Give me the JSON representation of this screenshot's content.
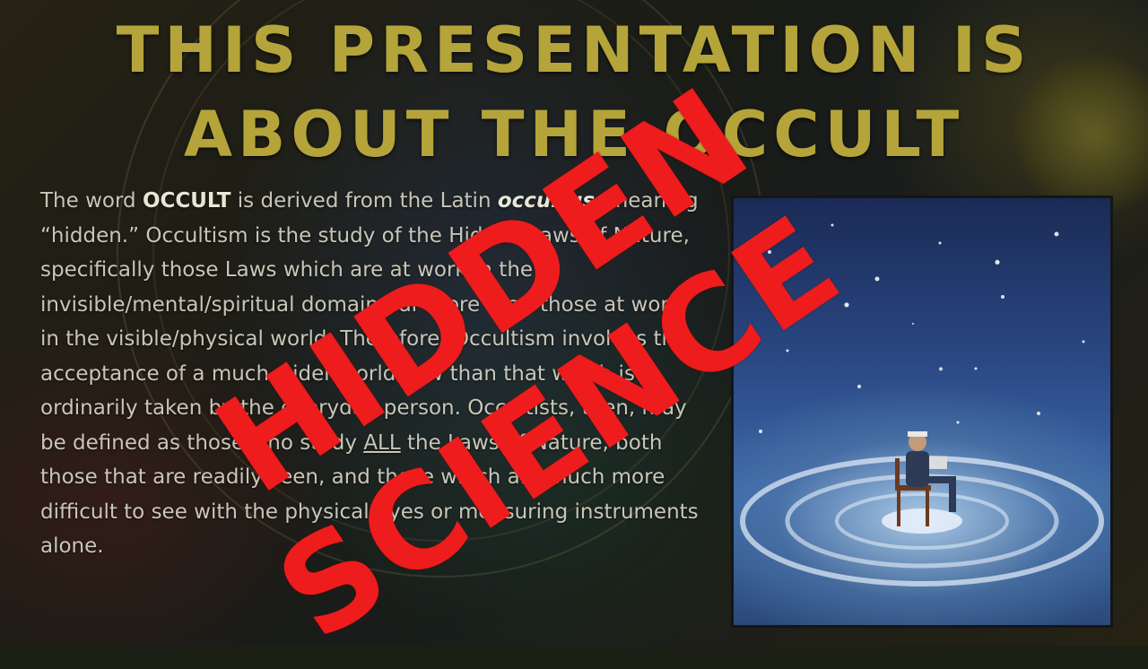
{
  "slide": {
    "title_line1": "THIS PRESENTATION IS",
    "title_line2": "ABOUT THE OCCULT",
    "paragraph": [
      {
        "text": "The word "
      },
      {
        "text": "OCCULT",
        "bold": true
      },
      {
        "text": " is derived from the Latin "
      },
      {
        "text": "occultus",
        "bold": true,
        "italic": true
      },
      {
        "text": ", meaning “hidden.” Occultism is the study of the Hidden Laws of Nature, specifically those Laws which are at work in the invisible/mental/spiritual domain, far more than those at work in the visible/physical world. Therefore, Occultism involves the acceptance of a much wider worldview than that which is ordinarily taken by the everyday person. Occultists, then, may be defined as those who study "
      },
      {
        "text": "ALL",
        "underline": true
      },
      {
        "text": " the Laws of Nature, both those that are readily seen, and those which are much more difficult to see with the physical eyes or measuring instruments alone."
      }
    ],
    "overlay_line1": "HIDDEN",
    "overlay_line2": "SCIENCE",
    "colors": {
      "title": "#b4a43a",
      "overlay": "#ee1c1c",
      "body_text": "#c9c6b8"
    }
  }
}
